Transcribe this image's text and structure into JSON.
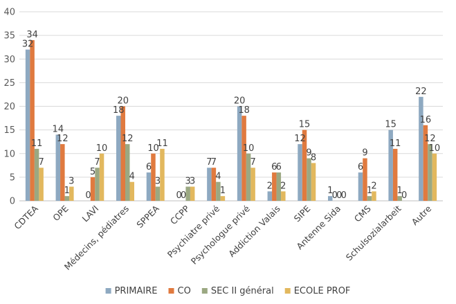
{
  "chart_data": {
    "type": "bar",
    "categories": [
      "CDTEA",
      "OPE",
      "LAVI",
      "Médecins, pédiatres",
      "SPPEA",
      "CCPP",
      "Psychiatre privé",
      "Psychologue privé",
      "Addiction Valais",
      "SIPE",
      "Antenne Sida",
      "CMS",
      "Schulsozialarbeit",
      "Autre"
    ],
    "series": [
      {
        "name": "PRIMAIRE",
        "color": "#8EA9C1",
        "values": [
          32,
          14,
          0,
          18,
          6,
          0,
          7,
          20,
          2,
          12,
          1,
          6,
          15,
          22
        ],
        "labels": [
          "32",
          "14",
          "0",
          "18",
          "6",
          "0",
          "7",
          "20",
          "2",
          "12",
          "1",
          "6",
          "15",
          "22"
        ]
      },
      {
        "name": "CO",
        "color": "#E07A3F",
        "values": [
          34,
          12,
          5,
          20,
          10,
          0,
          7,
          18,
          6,
          15,
          0,
          9,
          11,
          16
        ],
        "labels": [
          "34",
          "12",
          "5",
          "20",
          "10",
          "0",
          "7",
          "18",
          "6",
          "15",
          "0",
          "9",
          "11",
          "16"
        ]
      },
      {
        "name": "SEC II général",
        "color": "#9BA882",
        "values": [
          11,
          1,
          7,
          12,
          3,
          3,
          4,
          10,
          6,
          9,
          0,
          1,
          1,
          12
        ],
        "labels": [
          "11",
          "1",
          "7",
          "12",
          "3",
          "3",
          "4",
          "10",
          "6",
          "9",
          "0",
          "1",
          "1",
          "12"
        ]
      },
      {
        "name": "ECOLE PROF",
        "color": "#E2B85E",
        "values": [
          7,
          3,
          10,
          4,
          11,
          3,
          1,
          7,
          2,
          8,
          0,
          2,
          0,
          10
        ],
        "labels": [
          "7",
          "3",
          "10",
          "4",
          "11",
          "3",
          "1",
          "7",
          "2",
          "8",
          "0",
          "2",
          "0",
          "10"
        ]
      }
    ],
    "y_ticks": [
      "0",
      "5",
      "10",
      "15",
      "20",
      "25",
      "30",
      "35",
      "40"
    ],
    "ylim": [
      0,
      40
    ],
    "grid": true,
    "legend_position": "bottom"
  }
}
